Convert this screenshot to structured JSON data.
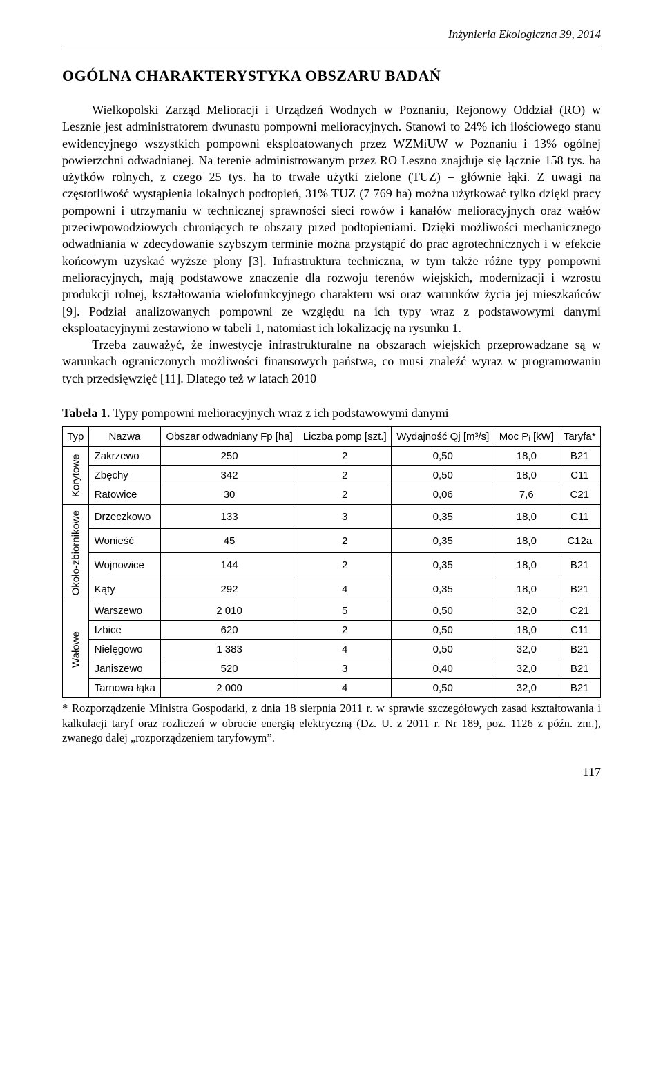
{
  "header": {
    "journal": "Inżynieria Ekologiczna 39, 2014"
  },
  "title": "OGÓLNA CHARAKTERYSTYKA OBSZARU BADAŃ",
  "paragraphs": {
    "p1": "Wielkopolski Zarząd Melioracji i Urządzeń Wodnych w Poznaniu, Rejonowy Oddział (RO) w Lesznie jest administratorem dwunastu pompowni melioracyjnych. Stanowi to 24% ich ilościowego stanu ewidencyjnego wszystkich pompowni eksploatowanych przez WZMiUW w Poznaniu i 13% ogólnej powierzchni odwadnianej. Na terenie administrowanym przez RO Leszno znajduje się łącznie 158 tys. ha użytków rolnych, z czego 25 tys. ha to trwałe użytki zielone (TUZ) – głównie łąki. Z uwagi na częstotliwość wystąpienia lokalnych podtopień, 31% TUZ (7 769 ha) można użytkować tylko dzięki pracy pompowni i utrzymaniu w technicznej sprawności sieci rowów i kanałów melioracyjnych oraz wałów przeciwpowodziowych chroniących te obszary przed podtopieniami. Dzięki możliwości mechanicznego odwadniania w zdecydowanie szybszym terminie można przystąpić do prac agrotechnicznych i w efekcie końcowym uzyskać wyższe plony [3]. Infrastruktura techniczna, w tym także różne typy pompowni melioracyjnych, mają podstawowe znaczenie dla rozwoju terenów wiejskich, modernizacji i wzrostu produkcji rolnej, kształtowania wielofunkcyjnego charakteru wsi oraz warunków życia jej mieszkańców [9]. Podział analizowanych pompowni ze względu na ich typy wraz z podstawowymi danymi eksploatacyjnymi zestawiono w tabeli 1, natomiast ich lokalizację na rysunku 1.",
    "p2": "Trzeba zauważyć, że inwestycje infrastrukturalne na obszarach wiejskich przeprowadzane są w warunkach ograniczonych możliwości finansowych państwa, co musi znaleźć wyraz w programowaniu tych przedsięwzięć [11]. Dlatego też w latach 2010"
  },
  "table": {
    "caption_prefix": "Tabela 1.",
    "caption_text": " Typy pompowni melioracyjnych wraz z ich podstawowymi danymi",
    "columns": {
      "typ": "Typ",
      "nazwa": "Nazwa",
      "obszar": "Obszar odwadniany Fp [ha]",
      "liczba": "Liczba pomp [szt.]",
      "wydajnosc": "Wydajność Qj [m³/s]",
      "moc": "Moc Pⱼ [kW]",
      "taryfa": "Taryfa*"
    },
    "groups": [
      {
        "label": "Korytowe",
        "rows": [
          {
            "nazwa": "Zakrzewo",
            "obszar": "250",
            "liczba": "2",
            "wydajnosc": "0,50",
            "moc": "18,0",
            "taryfa": "B21"
          },
          {
            "nazwa": "Zbęchy",
            "obszar": "342",
            "liczba": "2",
            "wydajnosc": "0,50",
            "moc": "18,0",
            "taryfa": "C11"
          },
          {
            "nazwa": "Ratowice",
            "obszar": "30",
            "liczba": "2",
            "wydajnosc": "0,06",
            "moc": "7,6",
            "taryfa": "C21"
          }
        ]
      },
      {
        "label": "Około-zbiornikowe",
        "rows": [
          {
            "nazwa": "Drzeczkowo",
            "obszar": "133",
            "liczba": "3",
            "wydajnosc": "0,35",
            "moc": "18,0",
            "taryfa": "C11"
          },
          {
            "nazwa": "Wonieść",
            "obszar": "45",
            "liczba": "2",
            "wydajnosc": "0,35",
            "moc": "18,0",
            "taryfa": "C12a"
          },
          {
            "nazwa": "Wojnowice",
            "obszar": "144",
            "liczba": "2",
            "wydajnosc": "0,35",
            "moc": "18,0",
            "taryfa": "B21"
          },
          {
            "nazwa": "Kąty",
            "obszar": "292",
            "liczba": "4",
            "wydajnosc": "0,35",
            "moc": "18,0",
            "taryfa": "B21"
          }
        ]
      },
      {
        "label": "Wałowe",
        "rows": [
          {
            "nazwa": "Warszewo",
            "obszar": "2 010",
            "liczba": "5",
            "wydajnosc": "0,50",
            "moc": "32,0",
            "taryfa": "C21"
          },
          {
            "nazwa": "Izbice",
            "obszar": "620",
            "liczba": "2",
            "wydajnosc": "0,50",
            "moc": "18,0",
            "taryfa": "C11"
          },
          {
            "nazwa": "Nielęgowo",
            "obszar": "1 383",
            "liczba": "4",
            "wydajnosc": "0,50",
            "moc": "32,0",
            "taryfa": "B21"
          },
          {
            "nazwa": "Janiszewo",
            "obszar": "520",
            "liczba": "3",
            "wydajnosc": "0,40",
            "moc": "32,0",
            "taryfa": "B21"
          },
          {
            "nazwa": "Tarnowa łąka",
            "obszar": "2 000",
            "liczba": "4",
            "wydajnosc": "0,50",
            "moc": "32,0",
            "taryfa": "B21"
          }
        ]
      }
    ],
    "footnote": "* Rozporządzenie Ministra Gospodarki, z dnia 18 sierpnia 2011 r. w sprawie szczegółowych zasad kształtowania i kalkulacji taryf oraz rozliczeń w obrocie energią elektryczną (Dz. U. z 2011 r. Nr 189, poz. 1126 z późn. zm.), zwanego dalej „rozporządzeniem taryfowym”."
  },
  "page_number": "117"
}
